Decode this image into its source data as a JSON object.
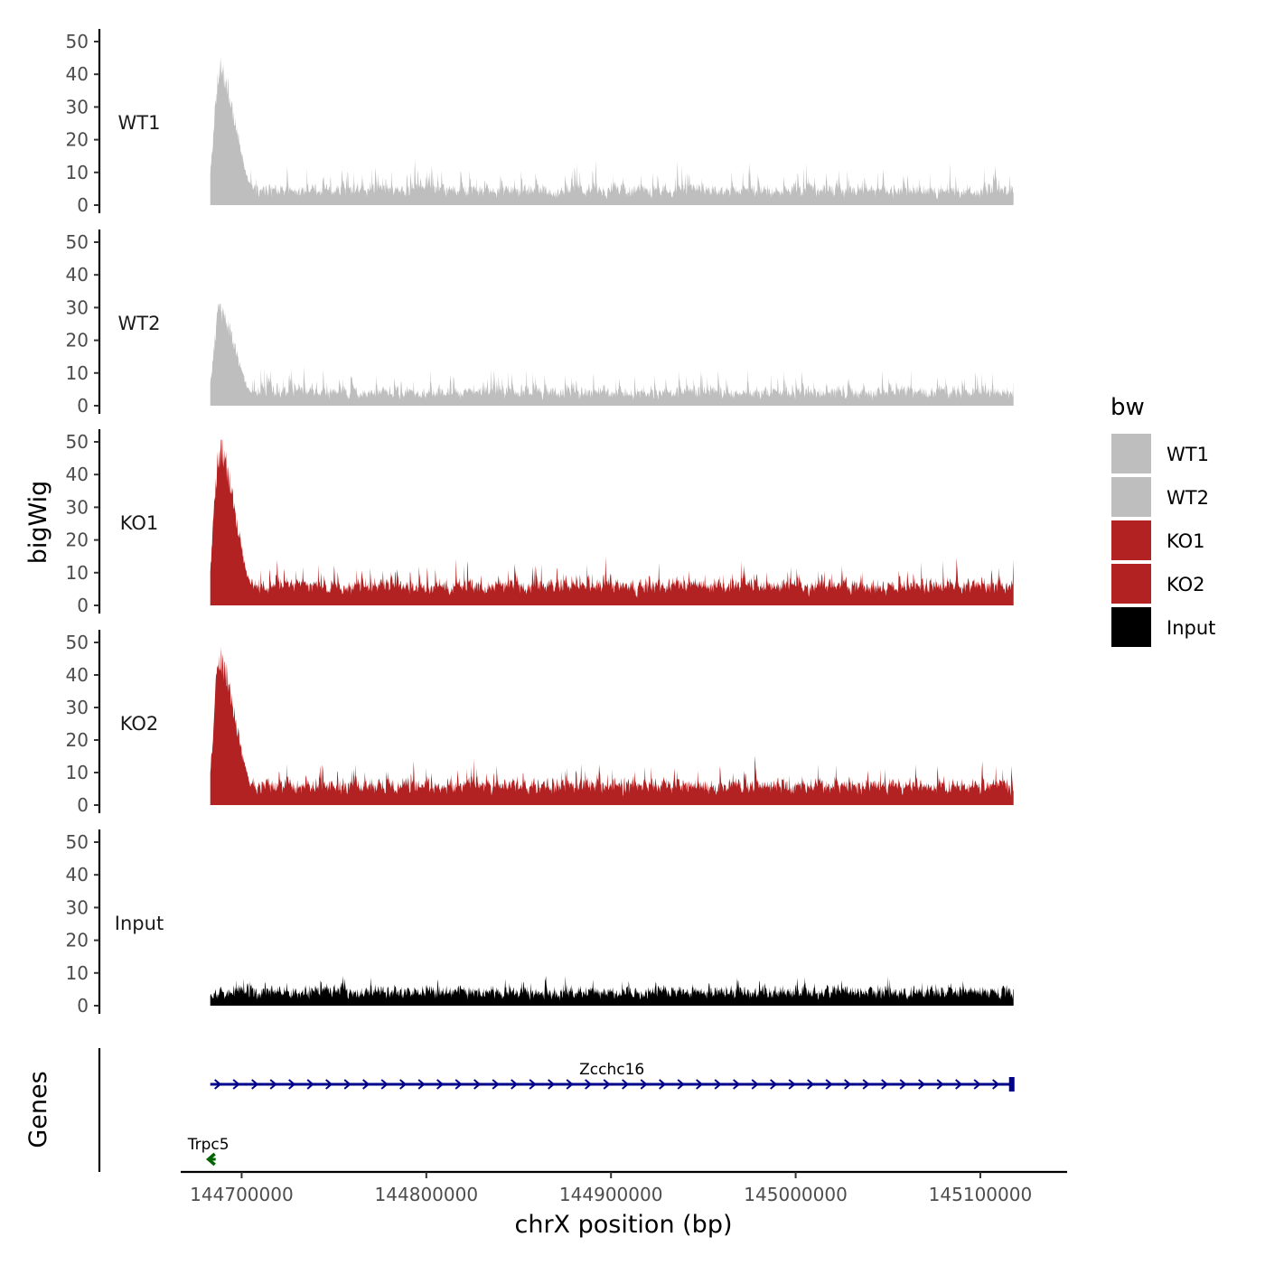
{
  "chart_data": {
    "type": "area",
    "ylabel": "bigWig",
    "xlabel": "chrX position (bp)",
    "xlim": [
      144667000,
      145147000
    ],
    "x_ticks": [
      144700000,
      144800000,
      144900000,
      145000000,
      145100000
    ],
    "x_tick_labels": [
      "144700000",
      "144800000",
      "144900000",
      "145000000",
      "145100000"
    ],
    "data_range": [
      144683000,
      145118000
    ],
    "ylim": [
      0,
      53
    ],
    "y_ticks": [
      0,
      10,
      20,
      30,
      40,
      50
    ],
    "y_tick_labels": [
      "0",
      "10",
      "20",
      "30",
      "40",
      "50"
    ],
    "legend": {
      "title": "bw",
      "placement": "right",
      "entries": [
        {
          "label": "WT1",
          "color": "#bebebe"
        },
        {
          "label": "WT2",
          "color": "#bebebe"
        },
        {
          "label": "KO1",
          "color": "#b22222"
        },
        {
          "label": "KO2",
          "color": "#b22222"
        },
        {
          "label": "Input",
          "color": "#000000"
        }
      ]
    },
    "series": [
      {
        "name": "WT1",
        "color": "#bebebe",
        "profile": {
          "peak_x": 144688000,
          "peak_max": 46,
          "peak_width": 12000,
          "background_mean": 5.0,
          "background_max": 22,
          "seed": 11
        }
      },
      {
        "name": "WT2",
        "color": "#bebebe",
        "profile": {
          "peak_x": 144688000,
          "peak_max": 32,
          "peak_width": 12000,
          "background_mean": 4.5,
          "background_max": 19,
          "seed": 23
        }
      },
      {
        "name": "KO1",
        "color": "#b22222",
        "profile": {
          "peak_x": 144688000,
          "peak_max": 52,
          "peak_width": 12000,
          "background_mean": 6.5,
          "background_max": 21,
          "seed": 37
        }
      },
      {
        "name": "KO2",
        "color": "#b22222",
        "profile": {
          "peak_x": 144688000,
          "peak_max": 49,
          "peak_width": 12000,
          "background_mean": 6.5,
          "background_max": 20,
          "seed": 41
        }
      },
      {
        "name": "Input",
        "color": "#000000",
        "profile": {
          "peak_x": null,
          "peak_max": 0,
          "peak_width": 0,
          "background_mean": 4.5,
          "background_max": 13,
          "seed": 53
        }
      }
    ],
    "genes_panel": {
      "ylabel": "Genes",
      "genes": [
        {
          "name": "Zcchc16",
          "start": 144683000,
          "end": 145118000,
          "strand": "+",
          "color": "#00008b",
          "row": 1
        },
        {
          "name": "Trpc5",
          "start": 144683000,
          "end": 144685500,
          "strand": "-",
          "color": "#006400",
          "row": 2
        }
      ]
    }
  }
}
